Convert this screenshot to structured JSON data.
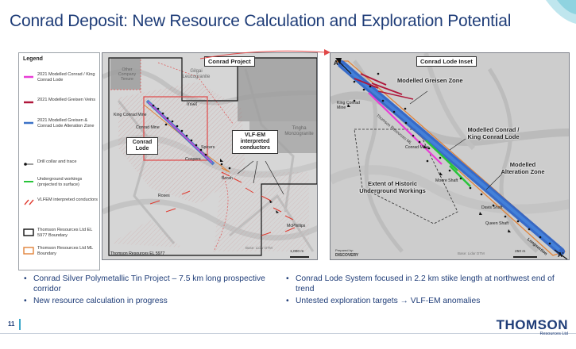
{
  "title": "Conrad Deposit: New Resource Calculation and Exploration Potential",
  "legend": {
    "title": "Legend",
    "items": [
      {
        "label": "2021 Modelled Conrad / King Conrad Lode",
        "color": "#e83dd6",
        "symbol": "line"
      },
      {
        "label": "2021 Modelled Greisen Veins",
        "color": "#b0173b",
        "symbol": "line"
      },
      {
        "label": "2021 Modelled Greisen & Conrad Lode Alteration Zone",
        "color": "#3b72c7",
        "symbol": "line"
      },
      {
        "label": "Drill collar and trace",
        "color": "#111111",
        "symbol": "drill"
      },
      {
        "label": "Underground workings (projected to surface)",
        "color": "#28c43a",
        "symbol": "line"
      },
      {
        "label": "VLFEM interpreted conductors",
        "color": "#e03a2f",
        "symbol": "dash"
      },
      {
        "label": "Thomson Resources Ltd EL 5977 Boundary",
        "color": "#111111",
        "symbol": "box"
      },
      {
        "label": "Thomson Resources Ltd ML Boundary",
        "color": "#e0833a",
        "symbol": "box"
      }
    ]
  },
  "map1": {
    "title": "Conrad Project",
    "labels": {
      "tenure": "Other Company Tenure",
      "gilgai": "Gilgai Leucogranite",
      "inset": "Inset",
      "tingha": "Tingha Monzogranite",
      "king_conrad_mine": "King Conrad Mine",
      "conrad_mine": "Conrad Mine",
      "spicers": "Spicers",
      "coopers": "Coopers",
      "borah": "Borah",
      "roses": "Roses",
      "mcphillips": "McPhillips",
      "conrad_lode": "Conrad Lode",
      "vlf_em": "VLF-EM interpreted conductors",
      "boundary_caption": "Thomson Resources EL 5977",
      "base_caption": "Base: Lidar DTM",
      "scale": "1,000 m"
    }
  },
  "map2": {
    "title": "Conrad Lode Inset",
    "labels": {
      "a": "A",
      "a_prime": "A'",
      "greisen": "Modelled Greisen Zone",
      "king_conrad_mine": "King Conrad Mine",
      "thomson_ml": "Thomson Resources ML",
      "conrad_mine": "Conrad Mine",
      "conrad_lode": "Modelled Conrad / King Conrad Lode",
      "alteration": "Modelled Alteration Zone",
      "historic": "Extent of Historic Underground Workings",
      "moore": "Moore Shaft",
      "davis": "Davis Shaft",
      "queen": "Queen Shaft",
      "longsection": "Longsection",
      "prepared_by": "Prepared by:",
      "discovery": "DISCOVERY",
      "base_caption": "Base: Lidar DTM",
      "scale": "250 m"
    }
  },
  "bullets_left": [
    "Conrad Silver Polymetallic Tin Project – 7.5 km long prospective corridor",
    "New resource calculation in progress"
  ],
  "bullets_right": [
    "Conrad Lode System focused in 2.2 km stike length at northwest end of trend",
    "Untested exploration targets → VLF-EM anomalies"
  ],
  "footer": {
    "page": "11",
    "logo": "THOMSON",
    "logo_sub": "Resources Ltd"
  }
}
